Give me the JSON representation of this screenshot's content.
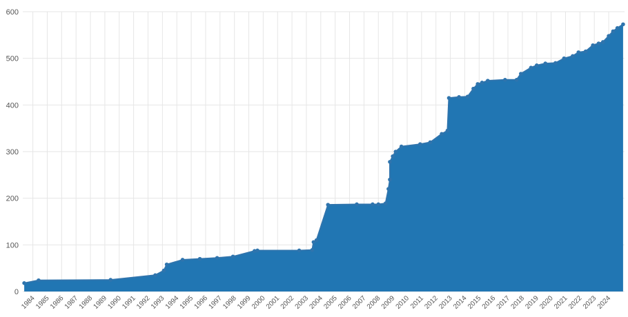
{
  "chart_data": {
    "type": "area",
    "title": "",
    "xlabel": "",
    "ylabel": "",
    "xlim": [
      1983.3,
      2025.1
    ],
    "ylim": [
      0,
      600
    ],
    "grid": true,
    "y_ticks": [
      0,
      100,
      200,
      300,
      400,
      500,
      600
    ],
    "x_ticks": [
      1984,
      1985,
      1986,
      1987,
      1988,
      1989,
      1990,
      1991,
      1992,
      1993,
      1994,
      1995,
      1996,
      1997,
      1998,
      1999,
      2000,
      2001,
      2002,
      2003,
      2004,
      2005,
      2006,
      2007,
      2008,
      2009,
      2010,
      2011,
      2012,
      2013,
      2014,
      2015,
      2016,
      2017,
      2018,
      2019,
      2020,
      2021,
      2022,
      2023,
      2024
    ],
    "series": [
      {
        "color": "#2176b3",
        "points": [
          [
            1983.4,
            18
          ],
          [
            1984.4,
            24
          ],
          [
            1989.4,
            25
          ],
          [
            1992.5,
            35
          ],
          [
            1993.1,
            45
          ],
          [
            1993.3,
            58
          ],
          [
            1994.4,
            68
          ],
          [
            1995.6,
            70
          ],
          [
            1996.8,
            72
          ],
          [
            1997.9,
            75
          ],
          [
            1999.4,
            87
          ],
          [
            1999.6,
            88
          ],
          [
            2002.5,
            88
          ],
          [
            2003.4,
            89
          ],
          [
            2003.5,
            106
          ],
          [
            2003.7,
            110
          ],
          [
            2004.5,
            186
          ],
          [
            2006.5,
            187
          ],
          [
            2007.6,
            187
          ],
          [
            2008.0,
            187
          ],
          [
            2008.5,
            189
          ],
          [
            2008.7,
            220
          ],
          [
            2008.8,
            240
          ],
          [
            2008.8,
            278
          ],
          [
            2009.0,
            290
          ],
          [
            2009.2,
            300
          ],
          [
            2009.6,
            311
          ],
          [
            2010.9,
            316
          ],
          [
            2011.6,
            320
          ],
          [
            2012.4,
            338
          ],
          [
            2012.8,
            345
          ],
          [
            2012.9,
            415
          ],
          [
            2013.6,
            417
          ],
          [
            2014.2,
            418
          ],
          [
            2014.6,
            435
          ],
          [
            2014.9,
            445
          ],
          [
            2015.2,
            448
          ],
          [
            2015.6,
            452
          ],
          [
            2016.8,
            454
          ],
          [
            2017.6,
            454
          ],
          [
            2017.9,
            467
          ],
          [
            2018.6,
            480
          ],
          [
            2019.0,
            485
          ],
          [
            2019.6,
            489
          ],
          [
            2020.3,
            490
          ],
          [
            2020.9,
            500
          ],
          [
            2021.5,
            505
          ],
          [
            2021.9,
            513
          ],
          [
            2022.4,
            515
          ],
          [
            2022.9,
            528
          ],
          [
            2023.3,
            532
          ],
          [
            2023.6,
            535
          ],
          [
            2024.0,
            548
          ],
          [
            2024.3,
            558
          ],
          [
            2024.6,
            565
          ],
          [
            2025.0,
            573
          ]
        ]
      }
    ]
  }
}
